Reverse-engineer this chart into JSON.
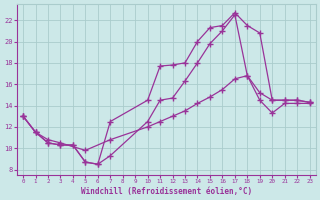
{
  "background_color": "#cce8e8",
  "line_color": "#993399",
  "grid_color": "#aacccc",
  "xlabel": "Windchill (Refroidissement éolien,°C)",
  "ylim": [
    7.5,
    23.5
  ],
  "xlim": [
    -0.5,
    23.5
  ],
  "yticks": [
    8,
    10,
    12,
    14,
    16,
    18,
    20,
    22
  ],
  "xticks": [
    0,
    1,
    2,
    3,
    4,
    5,
    6,
    7,
    8,
    9,
    10,
    11,
    12,
    13,
    14,
    15,
    16,
    17,
    18,
    19,
    20,
    21,
    22,
    23
  ],
  "line1_x": [
    0,
    1,
    2,
    3,
    4,
    5,
    6,
    7,
    10,
    11,
    12,
    13,
    14,
    15,
    16,
    17,
    18,
    19,
    20,
    21,
    22,
    23
  ],
  "line1_y": [
    13.0,
    11.5,
    10.5,
    10.3,
    10.3,
    8.7,
    8.5,
    12.5,
    14.5,
    17.7,
    17.8,
    18.0,
    20.0,
    21.3,
    21.5,
    22.7,
    21.5,
    20.8,
    14.5,
    14.5,
    14.5,
    14.3
  ],
  "line2_x": [
    0,
    1,
    2,
    3,
    4,
    5,
    6,
    7,
    10,
    11,
    12,
    13,
    14,
    15,
    16,
    17,
    18,
    19,
    20,
    21,
    22,
    23
  ],
  "line2_y": [
    13.0,
    11.5,
    10.5,
    10.3,
    10.3,
    8.7,
    8.5,
    9.3,
    12.5,
    14.5,
    14.7,
    16.3,
    18.0,
    19.8,
    21.0,
    22.5,
    16.8,
    15.2,
    14.5,
    14.5,
    14.5,
    14.3
  ],
  "line3_x": [
    0,
    1,
    2,
    3,
    5,
    7,
    10,
    11,
    12,
    13,
    14,
    15,
    16,
    17,
    18,
    19,
    20,
    21,
    22,
    23
  ],
  "line3_y": [
    13.0,
    11.5,
    10.8,
    10.5,
    9.8,
    10.8,
    12.0,
    12.5,
    13.0,
    13.5,
    14.2,
    14.8,
    15.5,
    16.5,
    16.8,
    14.5,
    13.3,
    14.2,
    14.2,
    14.2
  ]
}
